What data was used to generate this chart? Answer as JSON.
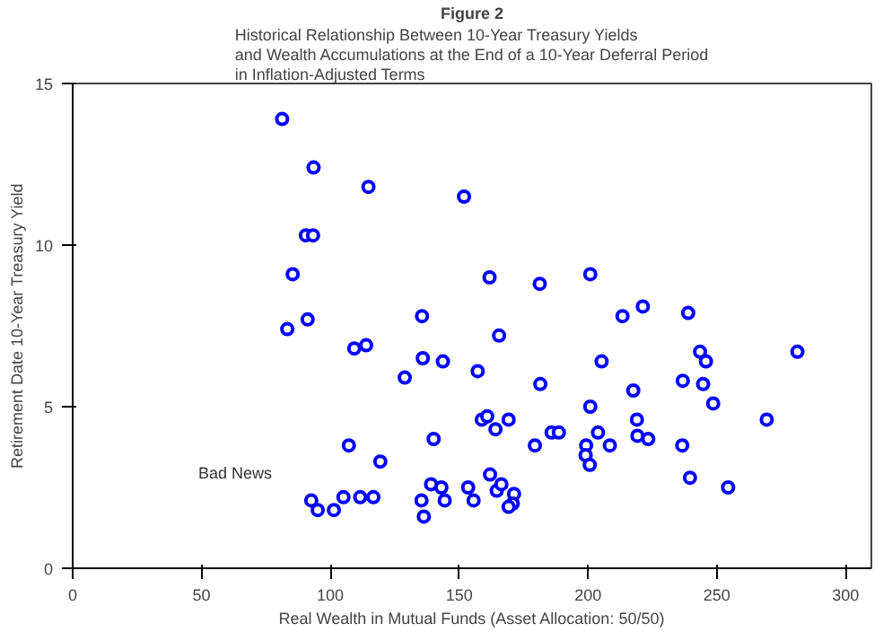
{
  "chart_data": {
    "type": "scatter",
    "title": "Figure 2",
    "subtitle": "Historical Relationship Between 10-Year Treasury Yields\nand Wealth Accumulations at the End of a 10-Year Deferral Period\nin Inflation-Adjusted Terms",
    "xlabel": "Real Wealth in Mutual Funds (Asset Allocation: 50/50)",
    "ylabel": "Retirement Date 10-Year Treasury Yield",
    "annotations": [
      "Bad News"
    ],
    "x": [
      81.3,
      93.5,
      114.8,
      151.9,
      90.5,
      93.3,
      85.4,
      135.6,
      91.2,
      83.3,
      109.3,
      113.9,
      135.9,
      143.7,
      128.9,
      161.8,
      181.3,
      200.9,
      213.4,
      221.3,
      238.9,
      165.5,
      157.2,
      205.3,
      243.5,
      245.8,
      281.3,
      181.5,
      217.6,
      236.8,
      244.7,
      248.6,
      200.9,
      158.8,
      160.9,
      164.1,
      169.2,
      269.4,
      179.4,
      185.9,
      188.7,
      203.9,
      219.0,
      219.2,
      223.4,
      199.3,
      199.1,
      208.5,
      200.7,
      236.6,
      239.6,
      254.4,
      162.0,
      153.5,
      155.6,
      164.6,
      166.4,
      171.3,
      170.8,
      169.2,
      107.2,
      119.4,
      140.1,
      92.6,
      95.1,
      101.4,
      105.1,
      111.6,
      116.7,
      135.4,
      136.3,
      139.1,
      143.1,
      144.4
    ],
    "values": [
      13.9,
      12.4,
      11.8,
      11.5,
      10.3,
      10.3,
      9.1,
      7.8,
      7.7,
      7.4,
      6.8,
      6.9,
      6.5,
      6.4,
      5.9,
      9.0,
      8.8,
      9.1,
      7.8,
      8.1,
      7.9,
      7.2,
      6.1,
      6.4,
      6.7,
      6.4,
      6.7,
      5.7,
      5.5,
      5.8,
      5.7,
      5.1,
      5.0,
      4.6,
      4.7,
      4.3,
      4.6,
      4.6,
      3.8,
      4.2,
      4.2,
      4.2,
      4.6,
      4.1,
      4.0,
      3.8,
      3.5,
      3.8,
      3.2,
      3.8,
      2.8,
      2.5,
      2.9,
      2.5,
      2.1,
      2.4,
      2.6,
      2.3,
      2.0,
      1.9,
      3.8,
      3.3,
      4.0,
      2.1,
      1.8,
      1.8,
      2.2,
      2.2,
      2.2,
      2.1,
      1.6,
      2.6,
      2.5,
      2.1
    ],
    "color": "#0000ff",
    "marker": "circle",
    "xlim": [
      0,
      310
    ],
    "ylim": [
      0,
      15
    ],
    "xticks": [
      0,
      50,
      100,
      150,
      200,
      250,
      300
    ],
    "yticks": [
      0,
      5,
      10,
      15
    ],
    "grid": false
  }
}
